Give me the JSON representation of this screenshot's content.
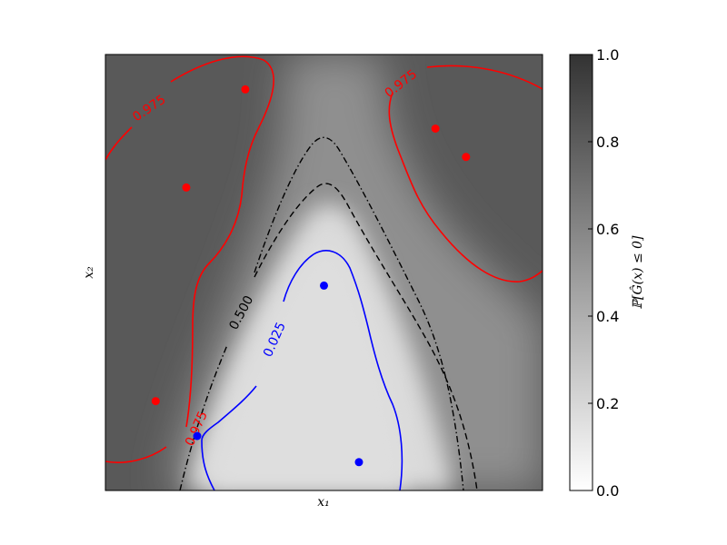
{
  "chart_data": {
    "type": "heatmap",
    "title": "",
    "xlabel": "x₁",
    "ylabel": "x₂",
    "colorbar": {
      "label": "ℙ[Ĝ(x) ≤ 0]",
      "range": [
        0.0,
        1.0
      ],
      "ticks": [
        "0.0",
        "0.2",
        "0.4",
        "0.6",
        "0.8",
        "1.0"
      ],
      "colormap": "gray_r",
      "low_color": "#ffffff",
      "high_color": "#333333"
    },
    "axis": {
      "xticks": false,
      "yticks": false,
      "xlim": [
        0,
        1
      ],
      "ylim": [
        0,
        1
      ]
    },
    "contours": [
      {
        "level": "0.975",
        "color": "#ff0000",
        "style": "solid"
      },
      {
        "level": "0.500",
        "color": "#000000",
        "style": "dashdot"
      },
      {
        "level": "",
        "color": "#000000",
        "style": "dashed"
      },
      {
        "level": "0.025",
        "color": "#0000ff",
        "style": "solid"
      }
    ],
    "points": [
      {
        "x": 0.32,
        "y": 0.92,
        "class": "red",
        "color": "#ff0000"
      },
      {
        "x": 0.185,
        "y": 0.695,
        "class": "red",
        "color": "#ff0000"
      },
      {
        "x": 0.755,
        "y": 0.83,
        "class": "red",
        "color": "#ff0000"
      },
      {
        "x": 0.825,
        "y": 0.765,
        "class": "red",
        "color": "#ff0000"
      },
      {
        "x": 0.115,
        "y": 0.205,
        "class": "red",
        "color": "#ff0000"
      },
      {
        "x": 0.5,
        "y": 0.47,
        "class": "blue",
        "color": "#0000ff"
      },
      {
        "x": 0.21,
        "y": 0.125,
        "class": "blue",
        "color": "#0000ff"
      },
      {
        "x": 0.58,
        "y": 0.065,
        "class": "blue",
        "color": "#0000ff"
      }
    ]
  }
}
